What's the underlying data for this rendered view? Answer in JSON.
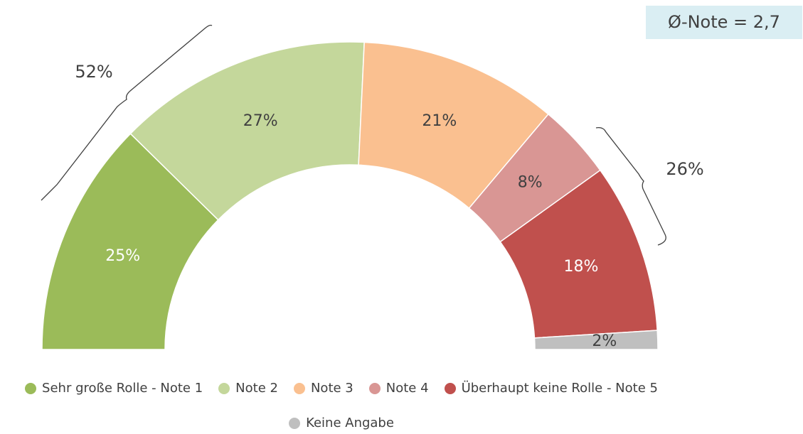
{
  "chart_data": {
    "type": "semi-donut",
    "categories": [
      "Sehr große Rolle - Note 1",
      "Note 2",
      "Note 3",
      "Note 4",
      "Überhaupt keine Rolle - Note 5",
      "Keine Angabe"
    ],
    "values": [
      25,
      27,
      21,
      8,
      18,
      2
    ],
    "value_labels": [
      "25%",
      "27%",
      "21%",
      "8%",
      "18%",
      "2%"
    ],
    "colors": [
      "#9bbb59",
      "#c4d79b",
      "#fac090",
      "#d99694",
      "#c0504d",
      "#bfbfbf"
    ],
    "label_colors": [
      "#ffffff",
      "#404040",
      "#404040",
      "#404040",
      "#ffffff",
      "#404040"
    ],
    "annotations": [
      "52%",
      "26%"
    ],
    "average_label": "Ø-Note = 2,7"
  }
}
